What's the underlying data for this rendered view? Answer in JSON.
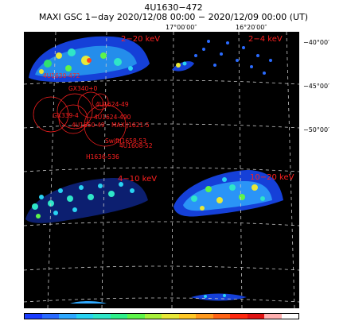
{
  "header": {
    "source": "4U1630−472",
    "observation": "MAXI GSC 1−day 2020/12/08 00:00 − 2020/12/09 00:00 (UT)"
  },
  "axes": {
    "ra_labels": [
      "17°00′00″",
      "16°20′00″"
    ],
    "dec_labels": [
      "−40°00′",
      "−45°00′",
      "−50°00′"
    ]
  },
  "panels": {
    "top_left_band": "2−20 keV",
    "top_right_band": "2−4 keV",
    "bottom_left_band": "4−10 keV",
    "bottom_right_band": "10−20 keV"
  },
  "sources": [
    "4U1630-472",
    "GX340+0",
    "4U1624-49",
    "GX339-4",
    "4U1624-490",
    "4U1650-49",
    "MAXIJ1621-5",
    "4U1608-52",
    "SwiftJ1658-53",
    "H1636-536"
  ],
  "colors": {
    "background": "#000000",
    "annotation": "#ff2020",
    "grid": "#c8c8c8"
  },
  "colorbar": [
    "#1a3cff",
    "#2a6bff",
    "#2fa9ff",
    "#29d3f2",
    "#2fe6c8",
    "#2ff08a",
    "#5ef54a",
    "#a8f03a",
    "#e8e838",
    "#ffc826",
    "#ff9a1e",
    "#ff6416",
    "#ff2a10",
    "#e01414",
    "#ffb0b0",
    "#ffffff"
  ]
}
